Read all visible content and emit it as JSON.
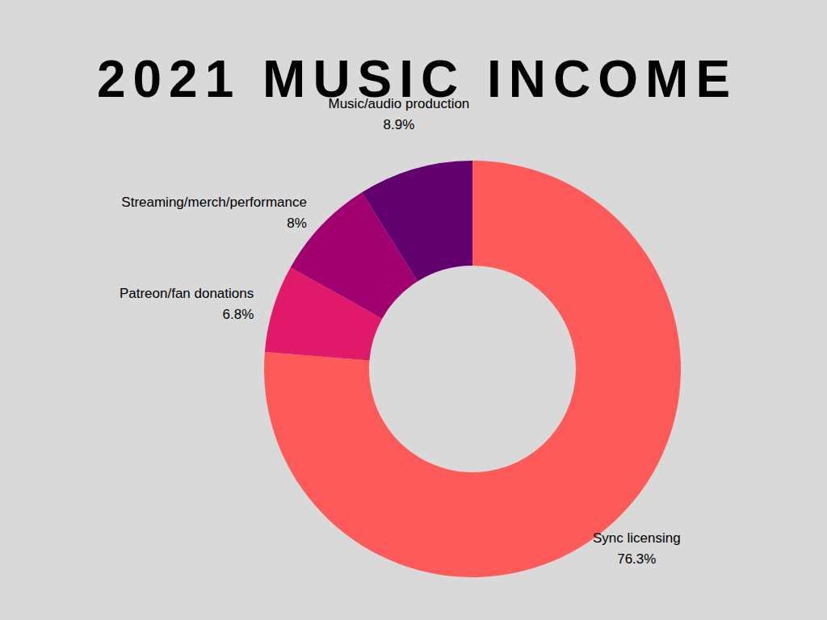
{
  "chart_data": {
    "type": "pie",
    "title": "2021 MUSIC INCOME",
    "categories": [
      "Sync licensing",
      "Patreon/fan donations",
      "Streaming/merch/performance",
      "Music/audio production"
    ],
    "values": [
      76.3,
      6.8,
      8,
      8.9
    ],
    "value_labels": [
      "76.3%",
      "6.8%",
      "8%",
      "8.9%"
    ],
    "colors": [
      "#ff5a5a",
      "#e0196a",
      "#a1006f",
      "#62006e"
    ],
    "data_labels": true,
    "legend": false
  }
}
